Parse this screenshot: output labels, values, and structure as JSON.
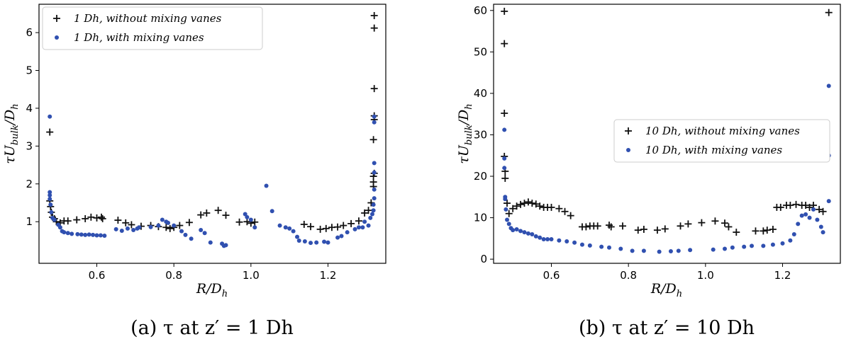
{
  "colors": {
    "series_black": "#111111",
    "series_blue": "#3050b0",
    "frame": "#000000"
  },
  "chart_data": [
    {
      "type": "scatter",
      "caption": "(a) τ at z′ = 1 Dh",
      "xlabel": "R/D_h",
      "ylabel": "τU_bulk/D_h",
      "xlim": [
        0.45,
        1.35
      ],
      "ylim": [
        -0.1,
        6.75
      ],
      "xticks": [
        0.6,
        0.8,
        1.0,
        1.2
      ],
      "xtick_labels": [
        "0.6",
        "0.8",
        "1.0",
        "1.2"
      ],
      "yticks": [
        1,
        2,
        3,
        4,
        5,
        6
      ],
      "ytick_labels": [
        "1",
        "2",
        "3",
        "4",
        "5",
        "6"
      ],
      "legend_position": "top-left",
      "series": [
        {
          "name": "1 Dh, without mixing vanes",
          "marker": "plus",
          "color": "#111111",
          "points": [
            [
              0.478,
              3.37
            ],
            [
              0.478,
              1.55
            ],
            [
              0.48,
              1.4
            ],
            [
              0.482,
              1.25
            ],
            [
              0.485,
              1.12
            ],
            [
              0.49,
              1.08
            ],
            [
              0.495,
              1.0
            ],
            [
              0.505,
              0.97
            ],
            [
              0.515,
              1.02
            ],
            [
              0.525,
              1.02
            ],
            [
              0.548,
              1.05
            ],
            [
              0.57,
              1.08
            ],
            [
              0.585,
              1.12
            ],
            [
              0.6,
              1.1
            ],
            [
              0.612,
              1.12
            ],
            [
              0.615,
              1.08
            ],
            [
              0.655,
              1.04
            ],
            [
              0.675,
              0.97
            ],
            [
              0.69,
              0.92
            ],
            [
              0.715,
              0.88
            ],
            [
              0.74,
              0.9
            ],
            [
              0.76,
              0.87
            ],
            [
              0.78,
              0.85
            ],
            [
              0.79,
              0.82
            ],
            [
              0.8,
              0.85
            ],
            [
              0.815,
              0.9
            ],
            [
              0.84,
              0.98
            ],
            [
              0.87,
              1.18
            ],
            [
              0.885,
              1.23
            ],
            [
              0.915,
              1.3
            ],
            [
              0.935,
              1.17
            ],
            [
              0.97,
              0.99
            ],
            [
              0.99,
              1.0
            ],
            [
              1.0,
              0.96
            ],
            [
              1.01,
              0.99
            ],
            [
              1.138,
              0.93
            ],
            [
              1.155,
              0.87
            ],
            [
              1.18,
              0.8
            ],
            [
              1.195,
              0.82
            ],
            [
              1.21,
              0.85
            ],
            [
              1.225,
              0.86
            ],
            [
              1.24,
              0.9
            ],
            [
              1.26,
              0.95
            ],
            [
              1.28,
              1.02
            ],
            [
              1.295,
              1.23
            ],
            [
              1.305,
              1.3
            ],
            [
              1.312,
              1.5
            ],
            [
              1.318,
              1.93
            ],
            [
              1.318,
              2.05
            ],
            [
              1.318,
              2.2
            ],
            [
              1.32,
              2.28
            ],
            [
              1.318,
              3.17
            ],
            [
              1.32,
              3.7
            ],
            [
              1.32,
              3.8
            ],
            [
              1.32,
              4.52
            ],
            [
              1.32,
              6.12
            ],
            [
              1.32,
              6.45
            ]
          ]
        },
        {
          "name": "1 Dh, with mixing vanes",
          "marker": "dot",
          "color": "#3050b0",
          "points": [
            [
              0.478,
              3.78
            ],
            [
              0.478,
              1.78
            ],
            [
              0.478,
              1.7
            ],
            [
              0.478,
              1.6
            ],
            [
              0.48,
              1.45
            ],
            [
              0.482,
              1.25
            ],
            [
              0.485,
              1.1
            ],
            [
              0.49,
              1.05
            ],
            [
              0.5,
              0.92
            ],
            [
              0.505,
              0.85
            ],
            [
              0.51,
              0.75
            ],
            [
              0.515,
              0.72
            ],
            [
              0.525,
              0.7
            ],
            [
              0.535,
              0.68
            ],
            [
              0.55,
              0.67
            ],
            [
              0.56,
              0.66
            ],
            [
              0.57,
              0.65
            ],
            [
              0.58,
              0.66
            ],
            [
              0.59,
              0.65
            ],
            [
              0.6,
              0.64
            ],
            [
              0.61,
              0.64
            ],
            [
              0.62,
              0.63
            ],
            [
              0.65,
              0.8
            ],
            [
              0.665,
              0.76
            ],
            [
              0.68,
              0.82
            ],
            [
              0.695,
              0.78
            ],
            [
              0.705,
              0.82
            ],
            [
              0.71,
              0.85
            ],
            [
              0.74,
              0.86
            ],
            [
              0.76,
              0.9
            ],
            [
              0.77,
              1.05
            ],
            [
              0.78,
              1.0
            ],
            [
              0.785,
              0.97
            ],
            [
              0.8,
              0.9
            ],
            [
              0.82,
              0.75
            ],
            [
              0.83,
              0.65
            ],
            [
              0.845,
              0.55
            ],
            [
              0.87,
              0.78
            ],
            [
              0.88,
              0.7
            ],
            [
              0.895,
              0.45
            ],
            [
              0.925,
              0.42
            ],
            [
              0.93,
              0.36
            ],
            [
              0.935,
              0.38
            ],
            [
              0.985,
              1.2
            ],
            [
              0.99,
              1.12
            ],
            [
              1.0,
              1.05
            ],
            [
              1.01,
              0.85
            ],
            [
              1.04,
              1.95
            ],
            [
              1.055,
              1.28
            ],
            [
              1.075,
              0.9
            ],
            [
              1.09,
              0.85
            ],
            [
              1.1,
              0.82
            ],
            [
              1.11,
              0.75
            ],
            [
              1.12,
              0.6
            ],
            [
              1.125,
              0.5
            ],
            [
              1.14,
              0.48
            ],
            [
              1.155,
              0.44
            ],
            [
              1.17,
              0.45
            ],
            [
              1.19,
              0.47
            ],
            [
              1.2,
              0.45
            ],
            [
              1.225,
              0.58
            ],
            [
              1.235,
              0.62
            ],
            [
              1.25,
              0.72
            ],
            [
              1.27,
              0.8
            ],
            [
              1.28,
              0.85
            ],
            [
              1.29,
              0.85
            ],
            [
              1.295,
              1.0
            ],
            [
              1.305,
              0.9
            ],
            [
              1.31,
              1.1
            ],
            [
              1.315,
              1.2
            ],
            [
              1.318,
              1.3
            ],
            [
              1.318,
              1.45
            ],
            [
              1.32,
              1.62
            ],
            [
              1.32,
              1.85
            ],
            [
              1.32,
              2.3
            ],
            [
              1.32,
              2.55
            ],
            [
              1.32,
              3.63
            ],
            [
              1.32,
              3.78
            ]
          ]
        }
      ]
    },
    {
      "type": "scatter",
      "caption": "(b) τ at z′ = 10 Dh",
      "xlabel": "R/D_h",
      "ylabel": "τU_bulk/D_h",
      "xlim": [
        0.45,
        1.35
      ],
      "ylim": [
        -1,
        61.5
      ],
      "xticks": [
        0.6,
        0.8,
        1.0,
        1.2
      ],
      "xtick_labels": [
        "0.6",
        "0.8",
        "1.0",
        "1.2"
      ],
      "yticks": [
        0,
        10,
        20,
        30,
        40,
        50,
        60
      ],
      "ytick_labels": [
        "0",
        "10",
        "20",
        "30",
        "40",
        "50",
        "60"
      ],
      "legend_position": "center-right",
      "series": [
        {
          "name": "10 Dh, without mixing vanes",
          "marker": "plus",
          "color": "#111111",
          "points": [
            [
              0.478,
              59.8
            ],
            [
              0.478,
              52.0
            ],
            [
              0.478,
              35.2
            ],
            [
              0.478,
              24.8
            ],
            [
              0.48,
              21.2
            ],
            [
              0.48,
              19.5
            ],
            [
              0.485,
              13.5
            ],
            [
              0.49,
              11.0
            ],
            [
              0.5,
              12.2
            ],
            [
              0.51,
              12.8
            ],
            [
              0.52,
              13.2
            ],
            [
              0.53,
              13.5
            ],
            [
              0.54,
              13.8
            ],
            [
              0.55,
              13.5
            ],
            [
              0.56,
              13.3
            ],
            [
              0.57,
              12.8
            ],
            [
              0.58,
              12.5
            ],
            [
              0.59,
              12.5
            ],
            [
              0.6,
              12.5
            ],
            [
              0.62,
              12.2
            ],
            [
              0.635,
              11.5
            ],
            [
              0.65,
              10.5
            ],
            [
              0.68,
              7.8
            ],
            [
              0.69,
              7.8
            ],
            [
              0.7,
              8.0
            ],
            [
              0.71,
              8.0
            ],
            [
              0.72,
              8.0
            ],
            [
              0.75,
              8.2
            ],
            [
              0.755,
              7.8
            ],
            [
              0.785,
              8.0
            ],
            [
              0.825,
              7.0
            ],
            [
              0.84,
              7.2
            ],
            [
              0.875,
              7.0
            ],
            [
              0.895,
              7.3
            ],
            [
              0.935,
              8.0
            ],
            [
              0.955,
              8.5
            ],
            [
              0.99,
              8.8
            ],
            [
              1.025,
              9.2
            ],
            [
              1.05,
              8.7
            ],
            [
              1.06,
              7.8
            ],
            [
              1.08,
              6.5
            ],
            [
              1.13,
              6.8
            ],
            [
              1.15,
              6.8
            ],
            [
              1.16,
              7.0
            ],
            [
              1.175,
              7.2
            ],
            [
              1.185,
              12.5
            ],
            [
              1.195,
              12.5
            ],
            [
              1.21,
              13.0
            ],
            [
              1.22,
              13.0
            ],
            [
              1.235,
              13.2
            ],
            [
              1.25,
              13.0
            ],
            [
              1.26,
              13.0
            ],
            [
              1.27,
              12.5
            ],
            [
              1.28,
              13.0
            ],
            [
              1.295,
              12.0
            ],
            [
              1.305,
              11.5
            ],
            [
              1.32,
              59.5
            ]
          ]
        },
        {
          "name": "10 Dh, with mixing vanes",
          "marker": "dot",
          "color": "#3050b0",
          "points": [
            [
              0.478,
              31.2
            ],
            [
              0.478,
              24.3
            ],
            [
              0.478,
              22.0
            ],
            [
              0.48,
              15.0
            ],
            [
              0.48,
              14.5
            ],
            [
              0.482,
              12.0
            ],
            [
              0.485,
              9.5
            ],
            [
              0.49,
              8.5
            ],
            [
              0.495,
              7.5
            ],
            [
              0.5,
              7.0
            ],
            [
              0.51,
              7.2
            ],
            [
              0.52,
              6.8
            ],
            [
              0.53,
              6.5
            ],
            [
              0.54,
              6.2
            ],
            [
              0.55,
              6.0
            ],
            [
              0.56,
              5.5
            ],
            [
              0.57,
              5.2
            ],
            [
              0.58,
              4.8
            ],
            [
              0.59,
              4.8
            ],
            [
              0.6,
              4.8
            ],
            [
              0.62,
              4.5
            ],
            [
              0.64,
              4.3
            ],
            [
              0.66,
              4.0
            ],
            [
              0.68,
              3.5
            ],
            [
              0.7,
              3.3
            ],
            [
              0.73,
              3.0
            ],
            [
              0.75,
              2.8
            ],
            [
              0.78,
              2.5
            ],
            [
              0.81,
              2.0
            ],
            [
              0.84,
              2.0
            ],
            [
              0.88,
              1.8
            ],
            [
              0.91,
              1.9
            ],
            [
              0.93,
              2.0
            ],
            [
              0.96,
              2.2
            ],
            [
              1.02,
              2.3
            ],
            [
              1.05,
              2.5
            ],
            [
              1.07,
              2.8
            ],
            [
              1.1,
              3.0
            ],
            [
              1.12,
              3.2
            ],
            [
              1.15,
              3.2
            ],
            [
              1.175,
              3.5
            ],
            [
              1.2,
              3.8
            ],
            [
              1.22,
              4.5
            ],
            [
              1.23,
              6.0
            ],
            [
              1.24,
              8.5
            ],
            [
              1.25,
              10.5
            ],
            [
              1.26,
              10.8
            ],
            [
              1.27,
              10.0
            ],
            [
              1.28,
              12.0
            ],
            [
              1.29,
              9.5
            ],
            [
              1.3,
              7.8
            ],
            [
              1.305,
              6.5
            ],
            [
              1.32,
              14.0
            ],
            [
              1.32,
              25.0
            ],
            [
              1.32,
              41.8
            ]
          ]
        }
      ]
    }
  ]
}
